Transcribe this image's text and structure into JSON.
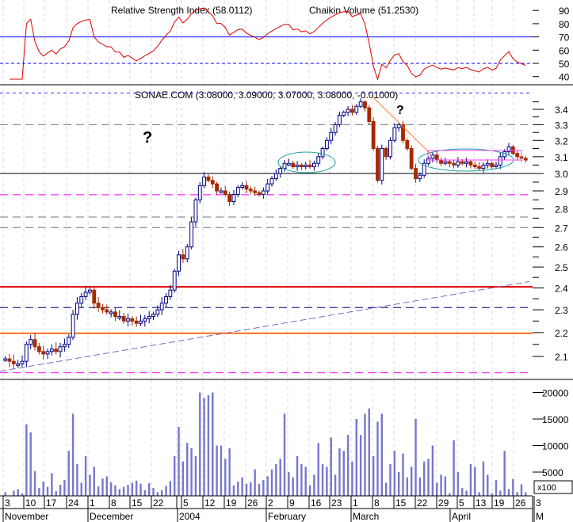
{
  "chart_data": [
    {
      "type": "line",
      "panel": "indicator",
      "title_a": "Relative Strength Index (58.0112)",
      "title_b": "Chaikin Volume (51.2530)",
      "ylim": [
        35,
        95
      ],
      "yticks": [
        40,
        50,
        60,
        70,
        80,
        90
      ],
      "reference_lines": [
        {
          "value": 70,
          "style": "solid"
        },
        {
          "value": 50,
          "style": "dashed"
        }
      ],
      "series_color": "#e00000",
      "period": 14
    },
    {
      "type": "candlestick",
      "panel": "price",
      "title": "SONAE.COM (3.08000, 3.09000, 3.07000, 3.08000, -0.01000)",
      "ylim": [
        2.02,
        3.52
      ],
      "scale": "log",
      "yticks": [
        2.1,
        2.2,
        2.3,
        2.4,
        2.5,
        2.6,
        2.7,
        2.8,
        2.9,
        3.0,
        3.1,
        3.2,
        3.3,
        3.4
      ],
      "closes": [
        2.09,
        2.08,
        2.07,
        2.07,
        2.08,
        2.15,
        2.17,
        2.14,
        2.12,
        2.11,
        2.12,
        2.13,
        2.12,
        2.14,
        2.15,
        2.18,
        2.28,
        2.33,
        2.36,
        2.38,
        2.39,
        2.33,
        2.31,
        2.3,
        2.29,
        2.29,
        2.27,
        2.27,
        2.25,
        2.26,
        2.25,
        2.24,
        2.25,
        2.26,
        2.27,
        2.28,
        2.3,
        2.33,
        2.36,
        2.39,
        2.48,
        2.56,
        2.54,
        2.6,
        2.73,
        2.85,
        2.93,
        2.98,
        2.96,
        2.94,
        2.9,
        2.9,
        2.88,
        2.84,
        2.88,
        2.92,
        2.93,
        2.91,
        2.9,
        2.89,
        2.88,
        2.9,
        2.94,
        2.97,
        3.0,
        3.03,
        3.06,
        3.06,
        3.04,
        3.05,
        3.04,
        3.05,
        3.04,
        3.06,
        3.1,
        3.15,
        3.2,
        3.25,
        3.3,
        3.36,
        3.38,
        3.4,
        3.38,
        3.42,
        3.45,
        3.41,
        3.32,
        3.15,
        2.96,
        3.15,
        3.1,
        3.2,
        3.28,
        3.3,
        3.2,
        3.15,
        3.03,
        2.97,
        2.99,
        3.06,
        3.09,
        3.11,
        3.08,
        3.06,
        3.07,
        3.06,
        3.05,
        3.07,
        3.06,
        3.07,
        3.05,
        3.04,
        3.03,
        3.05,
        3.06,
        3.04,
        3.05,
        3.1,
        3.13,
        3.16,
        3.12,
        3.1,
        3.09,
        3.08
      ],
      "up_color": "#000080",
      "down_color": "#a52a00",
      "horizontal_lines": [
        {
          "value": 3.51,
          "color": "#3030ff",
          "style": "dotted"
        },
        {
          "value": 3.3,
          "color": "#777777",
          "style": "dashed"
        },
        {
          "value": 3.0,
          "color": "#000000",
          "style": "solid"
        },
        {
          "value": 2.878,
          "color": "#ff00ff",
          "style": "dashed"
        },
        {
          "value": 2.756,
          "color": "#777777",
          "style": "dashed"
        },
        {
          "value": 2.7,
          "color": "#777777",
          "style": "dashed"
        },
        {
          "value": 2.405,
          "color": "#e00000",
          "style": "solid"
        },
        {
          "value": 2.31,
          "color": "#000080",
          "style": "dashed"
        },
        {
          "value": 2.197,
          "color": "#ff6a1a",
          "style": "solid"
        },
        {
          "value": 2.034,
          "color": "#ff00ff",
          "style": "dashed"
        }
      ],
      "annotations": [
        {
          "text": "?",
          "color": "#0000e0"
        },
        {
          "text": "?",
          "color": "#ff8030"
        }
      ]
    },
    {
      "type": "bar",
      "panel": "volume",
      "ylim": [
        0,
        21000
      ],
      "yticks": [
        5000,
        10000,
        15000,
        20000
      ],
      "multiplier_label": "x100",
      "bar_color": "#7777cc",
      "values": [
        1200,
        600,
        1500,
        1800,
        1000,
        14000,
        12500,
        5200,
        2000,
        3200,
        2200,
        4800,
        1400,
        2600,
        3500,
        9000,
        16000,
        6500,
        3000,
        8000,
        4500,
        6000,
        2300,
        3800,
        4200,
        3100,
        2500,
        1800,
        2200,
        2600,
        3000,
        3400,
        2800,
        1600,
        2900,
        2000,
        1200,
        1600,
        2400,
        3300,
        8000,
        13500,
        7000,
        10500,
        9500,
        8000,
        20000,
        19000,
        19500,
        20000,
        10000,
        10000,
        7500,
        9500,
        2500,
        3200,
        4000,
        2800,
        3100,
        5500,
        2800,
        3500,
        4200,
        5500,
        6500,
        7500,
        16000,
        5000,
        4000,
        8000,
        6500,
        6000,
        2500,
        4500,
        10500,
        6500,
        6000,
        11500,
        4500,
        9500,
        9000,
        12000,
        7000,
        15000,
        12000,
        16000,
        17000,
        8000,
        14500,
        16000,
        3000,
        6500,
        9000,
        5000,
        8500,
        4000,
        6000,
        15000,
        4000,
        7000,
        7500,
        10000,
        3000,
        4500,
        4200,
        1000,
        11000,
        5000,
        2000,
        1500,
        6500,
        6000,
        1200,
        7000,
        4500,
        1000,
        3500,
        1500,
        9000,
        1800,
        3700,
        1200,
        2700,
        1200
      ]
    }
  ],
  "x_axis": {
    "day_ticks": [
      "3",
      "10",
      "17",
      "24",
      "1",
      "8",
      "15",
      "22",
      "",
      "5",
      "12",
      "19",
      "26",
      "2",
      "9",
      "16",
      "23",
      "1",
      "8",
      "15",
      "22",
      "29",
      "5",
      "13",
      "19",
      "26",
      "3"
    ],
    "months": [
      "November",
      "December",
      "2004",
      "February",
      "March",
      "April",
      "M"
    ]
  }
}
